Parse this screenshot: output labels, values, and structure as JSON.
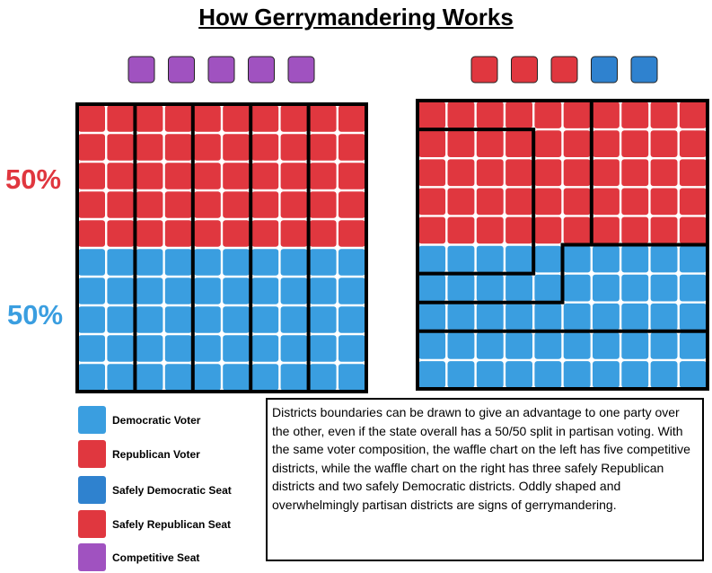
{
  "title": "How Gerrymandering Works",
  "labels": {
    "top_pct": "50%",
    "bottom_pct": "50%"
  },
  "colors": {
    "democratic_voter": "#3a9ee0",
    "republican_voter": "#e0373f",
    "safely_democratic_seat": "#2f82cf",
    "safely_republican_seat": "#e0373f",
    "competitive_seat": "#a052c0"
  },
  "chart_data": [
    {
      "type": "waffle",
      "grid": {
        "columns": 10,
        "rows": 10
      },
      "rows_top_to_bottom": [
        "Republican",
        "Republican",
        "Republican",
        "Republican",
        "Republican",
        "Democratic",
        "Democratic",
        "Democratic",
        "Democratic",
        "Democratic"
      ],
      "districts": 5,
      "district_shape": "vertical column strips, 2 columns each",
      "seats": [
        "Competitive",
        "Competitive",
        "Competitive",
        "Competitive",
        "Competitive"
      ]
    },
    {
      "type": "waffle",
      "grid": {
        "columns": 10,
        "rows": 10
      },
      "rows_top_to_bottom": [
        "Republican",
        "Republican",
        "Republican",
        "Republican",
        "Republican",
        "Democratic",
        "Democratic",
        "Democratic",
        "Democratic",
        "Democratic"
      ],
      "districts": 5,
      "district_shape": "irregular (gerrymandered)",
      "seats": [
        "Safely Republican",
        "Safely Republican",
        "Safely Republican",
        "Safely Democratic",
        "Safely Democratic"
      ]
    }
  ],
  "legend": [
    {
      "label": "Democratic Voter",
      "color": "#3a9ee0"
    },
    {
      "label": "Republican Voter",
      "color": "#e0373f"
    },
    {
      "label": "Safely Democratic Seat",
      "color": "#2f82cf"
    },
    {
      "label": "Safely Republican Seat",
      "color": "#e0373f"
    },
    {
      "label": "Competitive Seat",
      "color": "#a052c0"
    }
  ],
  "description": "Districts boundaries can be drawn to give an advantage to one party over the other, even if the state overall has a 50/50 split in partisan voting. With the same voter composition, the waffle chart on the left has five competitive districts, while the waffle chart on the right has three safely Republican districts and two safely Democratic districts. Oddly shaped and overwhelmingly partisan districts are signs of gerrymandering."
}
